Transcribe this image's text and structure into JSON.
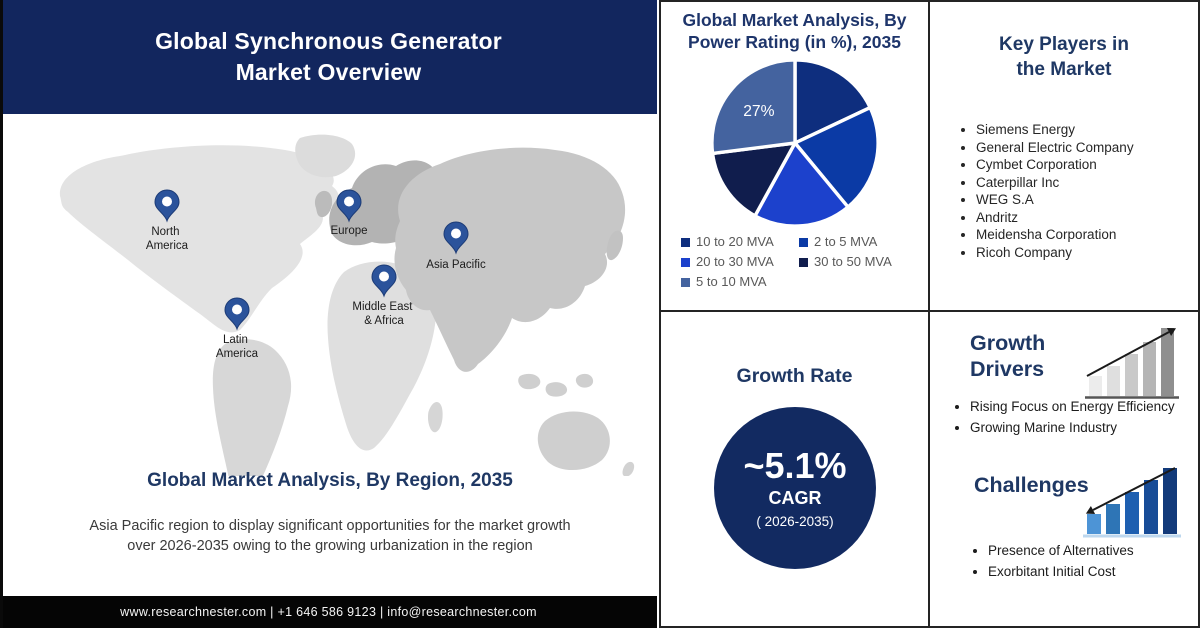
{
  "banner": {
    "title_line1": "Global Synchronous Generator",
    "title_line2": "Market Overview"
  },
  "map": {
    "regions": [
      {
        "name": "North America",
        "label_lines": [
          "North",
          "America"
        ]
      },
      {
        "name": "Europe",
        "label_lines": [
          "Europe"
        ]
      },
      {
        "name": "Asia Pacific",
        "label_lines": [
          "Asia Pacific"
        ]
      },
      {
        "name": "Middle East & Africa",
        "label_lines": [
          "Middle East",
          "& Africa"
        ]
      },
      {
        "name": "Latin America",
        "label_lines": [
          "Latin",
          "America"
        ]
      }
    ]
  },
  "region_section": {
    "heading": "Global Market Analysis, By Region, 2035",
    "description": "Asia Pacific region to display significant opportunities for the market growth over  2026-2035 owing to the growing urbanization in the region"
  },
  "footer": {
    "text": "www.researchnester.com | +1 646 586 9123 | info@researchnester.com"
  },
  "chart_data": {
    "type": "pie",
    "title": "Global Market Analysis, By Power Rating (in %), 2035",
    "labels": [
      "10 to 20 MVA",
      "2 to 5 MVA",
      "20 to 30 MVA",
      "30 to 50 MVA",
      "5 to 10 MVA"
    ],
    "values": [
      18,
      21,
      19,
      15,
      27
    ],
    "colors": [
      "#0E2E7E",
      "#0B3AA5",
      "#1C41CC",
      "#101D4D",
      "#44639F"
    ],
    "annotation": {
      "slice_index": 4,
      "text": "27%"
    },
    "start_angle_deg": 0,
    "direction": "clockwise",
    "legend_position": "bottom",
    "legend_columns": 2,
    "note": "only the 5 to 10 MVA slice shows a data label (27%); other values estimated from slice angles"
  },
  "growth_rate": {
    "heading": "Growth Rate",
    "value": "~5.1%",
    "cagr_label": "CAGR",
    "period": "( 2026-2035)"
  },
  "key_players": {
    "heading_line1": "Key Players in",
    "heading_line2": "the Market",
    "items": [
      "Siemens Energy",
      "General Electric Company",
      "Cymbet Corporation",
      "Caterpillar Inc",
      "WEG S.A",
      "Andritz",
      "Meidensha Corporation",
      "Ricoh Company"
    ]
  },
  "growth_drivers": {
    "heading_line1": "Growth",
    "heading_line2": "Drivers",
    "items": [
      "Rising Focus on Energy Efficiency",
      "Growing Marine Industry"
    ]
  },
  "challenges": {
    "heading": "Challenges",
    "items": [
      "Presence of Alternatives",
      "Exorbitant Initial Cost"
    ]
  },
  "colors": {
    "banner_navy": "#12265E",
    "heading_navy": "#1F3864",
    "circle_navy": "#122A61",
    "pin_blue": "#2B539B",
    "footer_black": "#050505",
    "legend_text_gray": "#595959"
  }
}
